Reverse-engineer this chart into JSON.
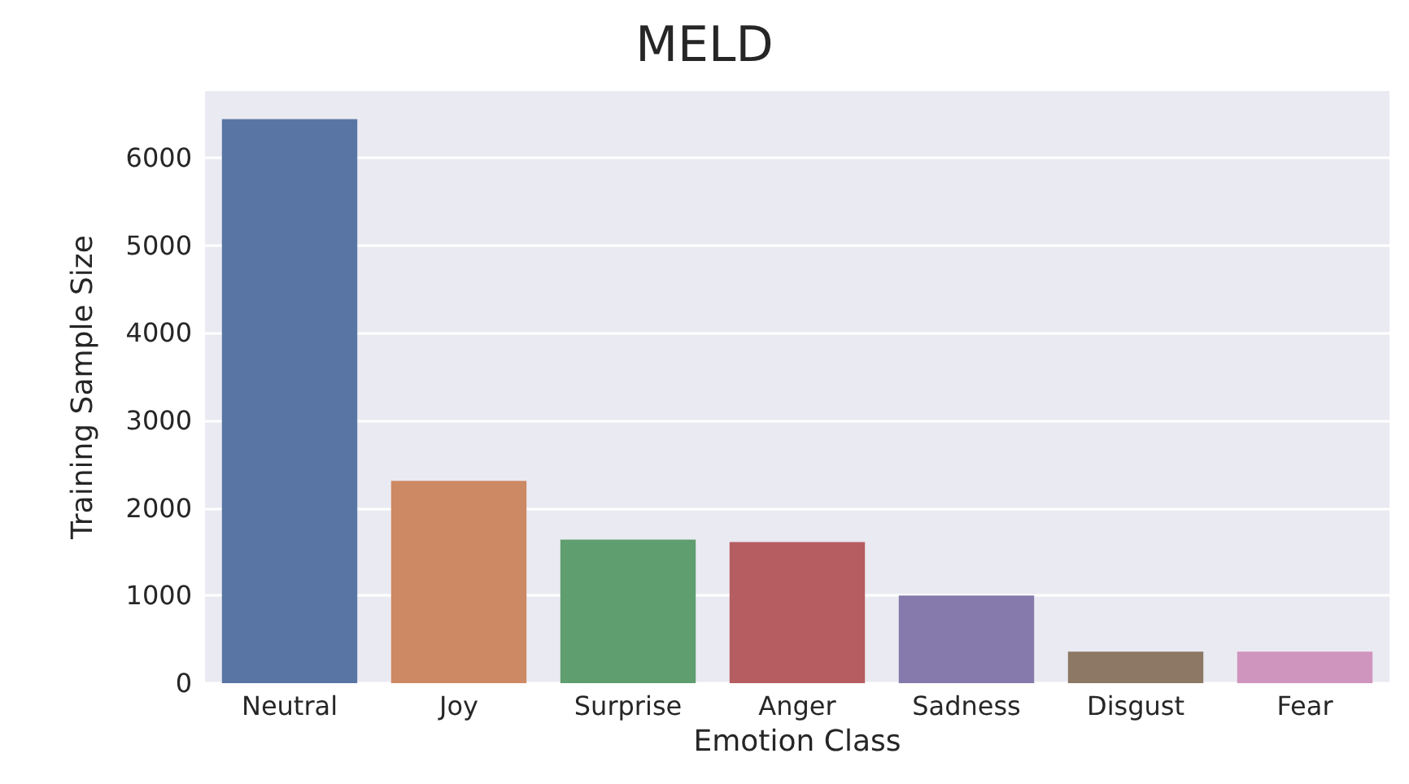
{
  "chart_data": {
    "type": "bar",
    "title": "MELD",
    "xlabel": "Emotion Class",
    "ylabel": "Training Sample Size",
    "categories": [
      "Neutral",
      "Joy",
      "Surprise",
      "Anger",
      "Sadness",
      "Disgust",
      "Fear"
    ],
    "values": [
      6440,
      2310,
      1640,
      1610,
      1000,
      360,
      360
    ],
    "colors": [
      "#5975a4",
      "#cc8963",
      "#5f9e6e",
      "#b55d60",
      "#857aab",
      "#8d7866",
      "#d095bf"
    ],
    "ylim": [
      0,
      6760
    ],
    "yticks": [
      0,
      1000,
      2000,
      3000,
      4000,
      5000,
      6000
    ],
    "grid": "y"
  }
}
